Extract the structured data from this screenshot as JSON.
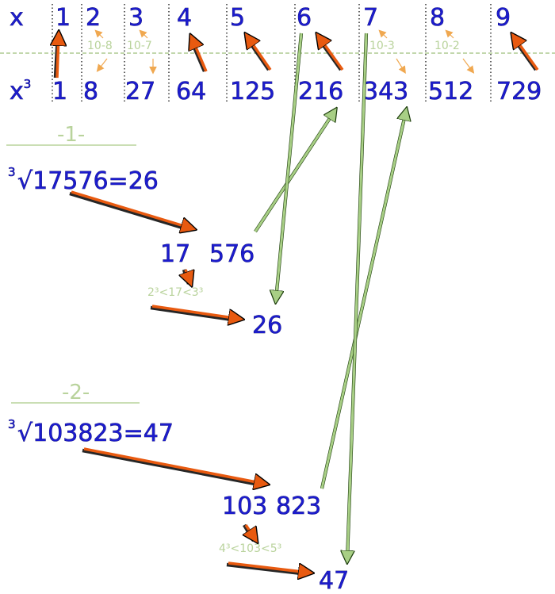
{
  "table": {
    "row_x_label": "x",
    "row_cube_label": "x",
    "row_cube_exp": "3",
    "x_values": [
      "1",
      "2",
      "3",
      "4",
      "5",
      "6",
      "7",
      "8",
      "9"
    ],
    "cube_values": [
      "1",
      "8",
      "27",
      "64",
      "125",
      "216",
      "343",
      "512",
      "729"
    ],
    "differences": [
      "10-8",
      "10-7",
      "10-3",
      "10-2"
    ]
  },
  "example1": {
    "heading": "-1-",
    "root_index": "3",
    "expression": "√17576=26",
    "group_left": "17",
    "group_right": "576",
    "inequality": "2³<17<3³",
    "result": "26"
  },
  "example2": {
    "heading": "-2-",
    "root_index": "3",
    "expression": "√103823=47",
    "group_left": "103",
    "group_right": "823",
    "inequality": "4³<103<5³",
    "result": "47"
  },
  "colors": {
    "digits": "#1c1ccc",
    "arrow_red": "#e85a10",
    "arrow_green": "#a8cf85",
    "light_text": "#b9d39c"
  }
}
